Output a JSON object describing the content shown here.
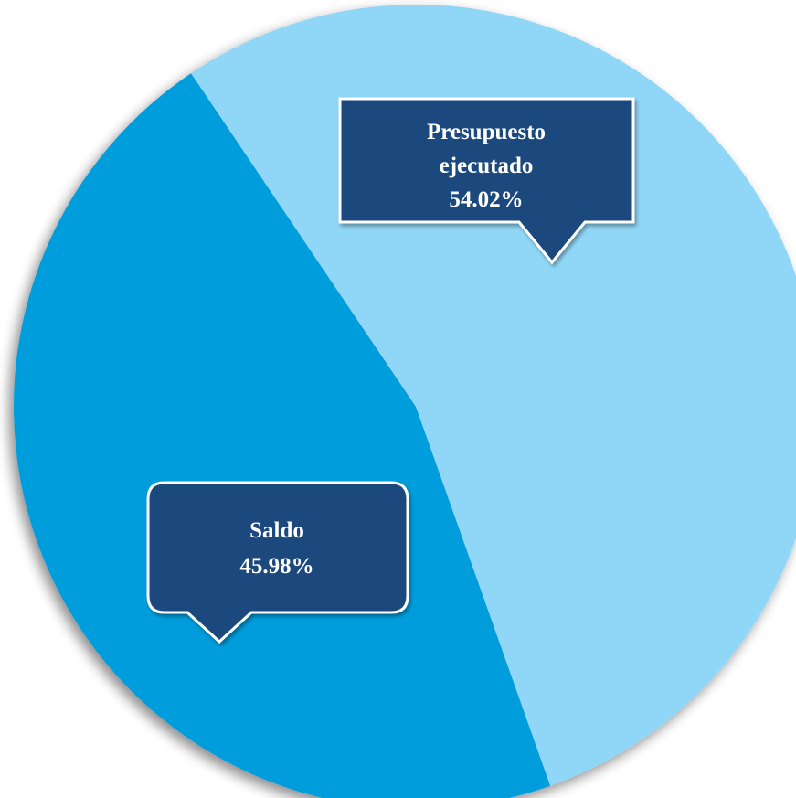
{
  "chart_data": {
    "type": "pie",
    "title": "",
    "slices": [
      {
        "label_lines": [
          "Presupuesto",
          "ejecutado"
        ],
        "value": 54.02,
        "display_value": "54.02%",
        "color": "#90d7f7"
      },
      {
        "label_lines": [
          "Saldo"
        ],
        "value": 45.98,
        "display_value": "45.98%",
        "color": "#009ddd"
      }
    ],
    "callout_color": "#1f497d",
    "legend": "none"
  }
}
